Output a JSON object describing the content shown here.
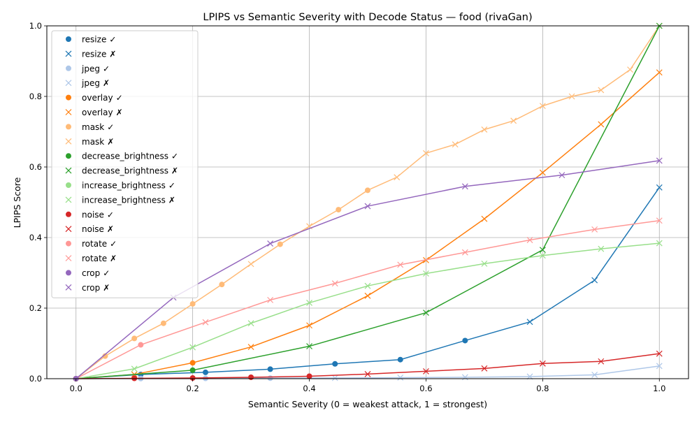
{
  "chart_data": {
    "type": "line",
    "title": "LPIPS vs Semantic Severity with Decode Status — food (rivaGan)",
    "xlabel": "Semantic Severity (0 = weakest attack, 1 = strongest)",
    "ylabel": "LPIPS Score",
    "xlim": [
      -0.05,
      1.05
    ],
    "ylim": [
      0,
      1
    ],
    "xticks": [
      "0.0",
      "0.2",
      "0.4",
      "0.6",
      "0.8",
      "1.0"
    ],
    "yticks": [
      "0.0",
      "0.2",
      "0.4",
      "0.6",
      "0.8",
      "1.0"
    ],
    "grid": true,
    "legend_position": "upper-left",
    "success_marker": "circle",
    "failure_marker": "x",
    "series": [
      {
        "name": "resize",
        "color": "#1f77b4",
        "x": [
          0.0,
          0.111,
          0.222,
          0.333,
          0.444,
          0.556,
          0.667,
          0.778,
          0.889,
          1.0
        ],
        "y": [
          0.0,
          0.012,
          0.018,
          0.027,
          0.042,
          0.054,
          0.108,
          0.161,
          0.279,
          0.542
        ],
        "decoded": [
          true,
          true,
          true,
          true,
          true,
          true,
          true,
          false,
          false,
          false
        ]
      },
      {
        "name": "jpeg",
        "color": "#aec7e8",
        "x": [
          0.0,
          0.111,
          0.222,
          0.333,
          0.444,
          0.556,
          0.667,
          0.778,
          0.889,
          1.0
        ],
        "y": [
          0.0,
          0.0005,
          0.001,
          0.0015,
          0.002,
          0.003,
          0.004,
          0.006,
          0.011,
          0.036
        ],
        "decoded": [
          true,
          true,
          true,
          true,
          false,
          false,
          false,
          false,
          false,
          false
        ]
      },
      {
        "name": "overlay",
        "color": "#ff7f0e",
        "x": [
          0.0,
          0.1,
          0.2,
          0.3,
          0.4,
          0.5,
          0.6,
          0.7,
          0.8,
          0.9,
          1.0
        ],
        "y": [
          0.0,
          0.012,
          0.045,
          0.09,
          0.151,
          0.235,
          0.336,
          0.453,
          0.584,
          0.721,
          0.868
        ],
        "decoded": [
          true,
          false,
          true,
          false,
          false,
          false,
          false,
          false,
          false,
          false,
          false
        ]
      },
      {
        "name": "mask",
        "color": "#ffbb78",
        "x": [
          0.0,
          0.05,
          0.1,
          0.15,
          0.2,
          0.25,
          0.3,
          0.35,
          0.4,
          0.45,
          0.5,
          0.55,
          0.6,
          0.65,
          0.7,
          0.75,
          0.8,
          0.85,
          0.9,
          0.95,
          1.0
        ],
        "y": [
          0.0,
          0.064,
          0.114,
          0.157,
          0.212,
          0.267,
          0.325,
          0.381,
          0.432,
          0.479,
          0.534,
          0.571,
          0.639,
          0.664,
          0.706,
          0.731,
          0.773,
          0.8,
          0.818,
          0.876,
          1.0
        ],
        "decoded": [
          true,
          true,
          true,
          true,
          true,
          true,
          false,
          true,
          false,
          true,
          true,
          false,
          false,
          false,
          false,
          false,
          false,
          false,
          false,
          false,
          false
        ]
      },
      {
        "name": "decrease_brightness",
        "color": "#2ca02c",
        "x": [
          0.0,
          0.2,
          0.4,
          0.6,
          0.8,
          1.0
        ],
        "y": [
          0.0,
          0.024,
          0.092,
          0.187,
          0.365,
          1.0
        ],
        "decoded": [
          true,
          true,
          false,
          false,
          false,
          false
        ]
      },
      {
        "name": "increase_brightness",
        "color": "#98df8a",
        "x": [
          0.0,
          0.1,
          0.2,
          0.3,
          0.4,
          0.5,
          0.6,
          0.7,
          0.8,
          0.9,
          1.0
        ],
        "y": [
          0.0,
          0.028,
          0.089,
          0.157,
          0.215,
          0.263,
          0.298,
          0.326,
          0.349,
          0.368,
          0.384
        ],
        "decoded": [
          true,
          false,
          false,
          false,
          false,
          false,
          false,
          false,
          false,
          false,
          false
        ]
      },
      {
        "name": "noise",
        "color": "#d62728",
        "x": [
          0.0,
          0.1,
          0.2,
          0.3,
          0.4,
          0.5,
          0.6,
          0.7,
          0.8,
          0.9,
          1.0
        ],
        "y": [
          0.0,
          0.001,
          0.002,
          0.004,
          0.007,
          0.013,
          0.021,
          0.029,
          0.043,
          0.049,
          0.071
        ],
        "decoded": [
          true,
          true,
          true,
          true,
          true,
          false,
          false,
          false,
          false,
          false,
          false
        ]
      },
      {
        "name": "rotate",
        "color": "#ff9896",
        "x": [
          0.0,
          0.111,
          0.222,
          0.333,
          0.444,
          0.556,
          0.667,
          0.778,
          0.889,
          1.0
        ],
        "y": [
          0.0,
          0.096,
          0.16,
          0.223,
          0.27,
          0.323,
          0.358,
          0.393,
          0.423,
          0.448
        ],
        "decoded": [
          true,
          true,
          false,
          false,
          false,
          false,
          false,
          false,
          false,
          false
        ]
      },
      {
        "name": "crop",
        "color": "#9467bd",
        "x": [
          0.0,
          0.167,
          0.333,
          0.5,
          0.667,
          0.833,
          1.0
        ],
        "y": [
          0.0,
          0.23,
          0.383,
          0.489,
          0.545,
          0.577,
          0.618
        ],
        "decoded": [
          true,
          false,
          false,
          false,
          false,
          false,
          false
        ]
      }
    ]
  }
}
